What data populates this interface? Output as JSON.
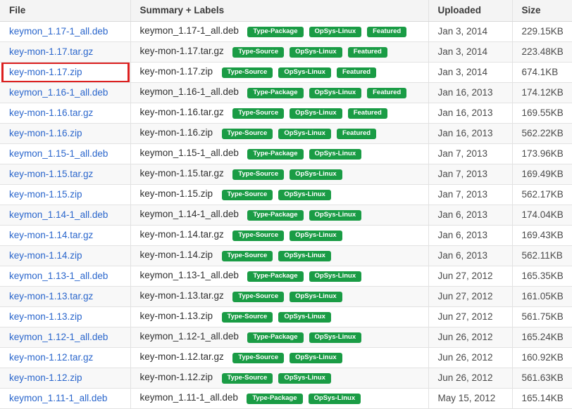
{
  "colors": {
    "link_blue": "#2a66cc",
    "label_green": "#1a9c45",
    "highlight_red": "#dc2020",
    "header_bg": "#f4f4f4"
  },
  "table": {
    "columns": [
      "File",
      "Summary + Labels",
      "Uploaded",
      "Size"
    ],
    "rows": [
      {
        "file": "keymon_1.17-1_all.deb",
        "summary": "keymon_1.17-1_all.deb",
        "labels": [
          "Type-Package",
          "OpSys-Linux",
          "Featured"
        ],
        "uploaded": "Jan 3, 2014",
        "size": "229.15KB",
        "highlighted": false
      },
      {
        "file": "key-mon-1.17.tar.gz",
        "summary": "key-mon-1.17.tar.gz",
        "labels": [
          "Type-Source",
          "OpSys-Linux",
          "Featured"
        ],
        "uploaded": "Jan 3, 2014",
        "size": "223.48KB",
        "highlighted": false
      },
      {
        "file": "key-mon-1.17.zip",
        "summary": "key-mon-1.17.zip",
        "labels": [
          "Type-Source",
          "OpSys-Linux",
          "Featured"
        ],
        "uploaded": "Jan 3, 2014",
        "size": "674.1KB",
        "highlighted": true
      },
      {
        "file": "keymon_1.16-1_all.deb",
        "summary": "keymon_1.16-1_all.deb",
        "labels": [
          "Type-Package",
          "OpSys-Linux",
          "Featured"
        ],
        "uploaded": "Jan 16, 2013",
        "size": "174.12KB",
        "highlighted": false
      },
      {
        "file": "key-mon-1.16.tar.gz",
        "summary": "key-mon-1.16.tar.gz",
        "labels": [
          "Type-Source",
          "OpSys-Linux",
          "Featured"
        ],
        "uploaded": "Jan 16, 2013",
        "size": "169.55KB",
        "highlighted": false
      },
      {
        "file": "key-mon-1.16.zip",
        "summary": "key-mon-1.16.zip",
        "labels": [
          "Type-Source",
          "OpSys-Linux",
          "Featured"
        ],
        "uploaded": "Jan 16, 2013",
        "size": "562.22KB",
        "highlighted": false
      },
      {
        "file": "keymon_1.15-1_all.deb",
        "summary": "keymon_1.15-1_all.deb",
        "labels": [
          "Type-Package",
          "OpSys-Linux"
        ],
        "uploaded": "Jan 7, 2013",
        "size": "173.96KB",
        "highlighted": false
      },
      {
        "file": "key-mon-1.15.tar.gz",
        "summary": "key-mon-1.15.tar.gz",
        "labels": [
          "Type-Source",
          "OpSys-Linux"
        ],
        "uploaded": "Jan 7, 2013",
        "size": "169.49KB",
        "highlighted": false
      },
      {
        "file": "key-mon-1.15.zip",
        "summary": "key-mon-1.15.zip",
        "labels": [
          "Type-Source",
          "OpSys-Linux"
        ],
        "uploaded": "Jan 7, 2013",
        "size": "562.17KB",
        "highlighted": false
      },
      {
        "file": "keymon_1.14-1_all.deb",
        "summary": "keymon_1.14-1_all.deb",
        "labels": [
          "Type-Package",
          "OpSys-Linux"
        ],
        "uploaded": "Jan 6, 2013",
        "size": "174.04KB",
        "highlighted": false
      },
      {
        "file": "key-mon-1.14.tar.gz",
        "summary": "key-mon-1.14.tar.gz",
        "labels": [
          "Type-Source",
          "OpSys-Linux"
        ],
        "uploaded": "Jan 6, 2013",
        "size": "169.43KB",
        "highlighted": false
      },
      {
        "file": "key-mon-1.14.zip",
        "summary": "key-mon-1.14.zip",
        "labels": [
          "Type-Source",
          "OpSys-Linux"
        ],
        "uploaded": "Jan 6, 2013",
        "size": "562.11KB",
        "highlighted": false
      },
      {
        "file": "keymon_1.13-1_all.deb",
        "summary": "keymon_1.13-1_all.deb",
        "labels": [
          "Type-Package",
          "OpSys-Linux"
        ],
        "uploaded": "Jun 27, 2012",
        "size": "165.35KB",
        "highlighted": false
      },
      {
        "file": "key-mon-1.13.tar.gz",
        "summary": "key-mon-1.13.tar.gz",
        "labels": [
          "Type-Source",
          "OpSys-Linux"
        ],
        "uploaded": "Jun 27, 2012",
        "size": "161.05KB",
        "highlighted": false
      },
      {
        "file": "key-mon-1.13.zip",
        "summary": "key-mon-1.13.zip",
        "labels": [
          "Type-Source",
          "OpSys-Linux"
        ],
        "uploaded": "Jun 27, 2012",
        "size": "561.75KB",
        "highlighted": false
      },
      {
        "file": "keymon_1.12-1_all.deb",
        "summary": "keymon_1.12-1_all.deb",
        "labels": [
          "Type-Package",
          "OpSys-Linux"
        ],
        "uploaded": "Jun 26, 2012",
        "size": "165.24KB",
        "highlighted": false
      },
      {
        "file": "key-mon-1.12.tar.gz",
        "summary": "key-mon-1.12.tar.gz",
        "labels": [
          "Type-Source",
          "OpSys-Linux"
        ],
        "uploaded": "Jun 26, 2012",
        "size": "160.92KB",
        "highlighted": false
      },
      {
        "file": "key-mon-1.12.zip",
        "summary": "key-mon-1.12.zip",
        "labels": [
          "Type-Source",
          "OpSys-Linux"
        ],
        "uploaded": "Jun 26, 2012",
        "size": "561.63KB",
        "highlighted": false
      },
      {
        "file": "keymon_1.11-1_all.deb",
        "summary": "keymon_1.11-1_all.deb",
        "labels": [
          "Type-Package",
          "OpSys-Linux"
        ],
        "uploaded": "May 15, 2012",
        "size": "165.14KB",
        "highlighted": false
      }
    ]
  }
}
